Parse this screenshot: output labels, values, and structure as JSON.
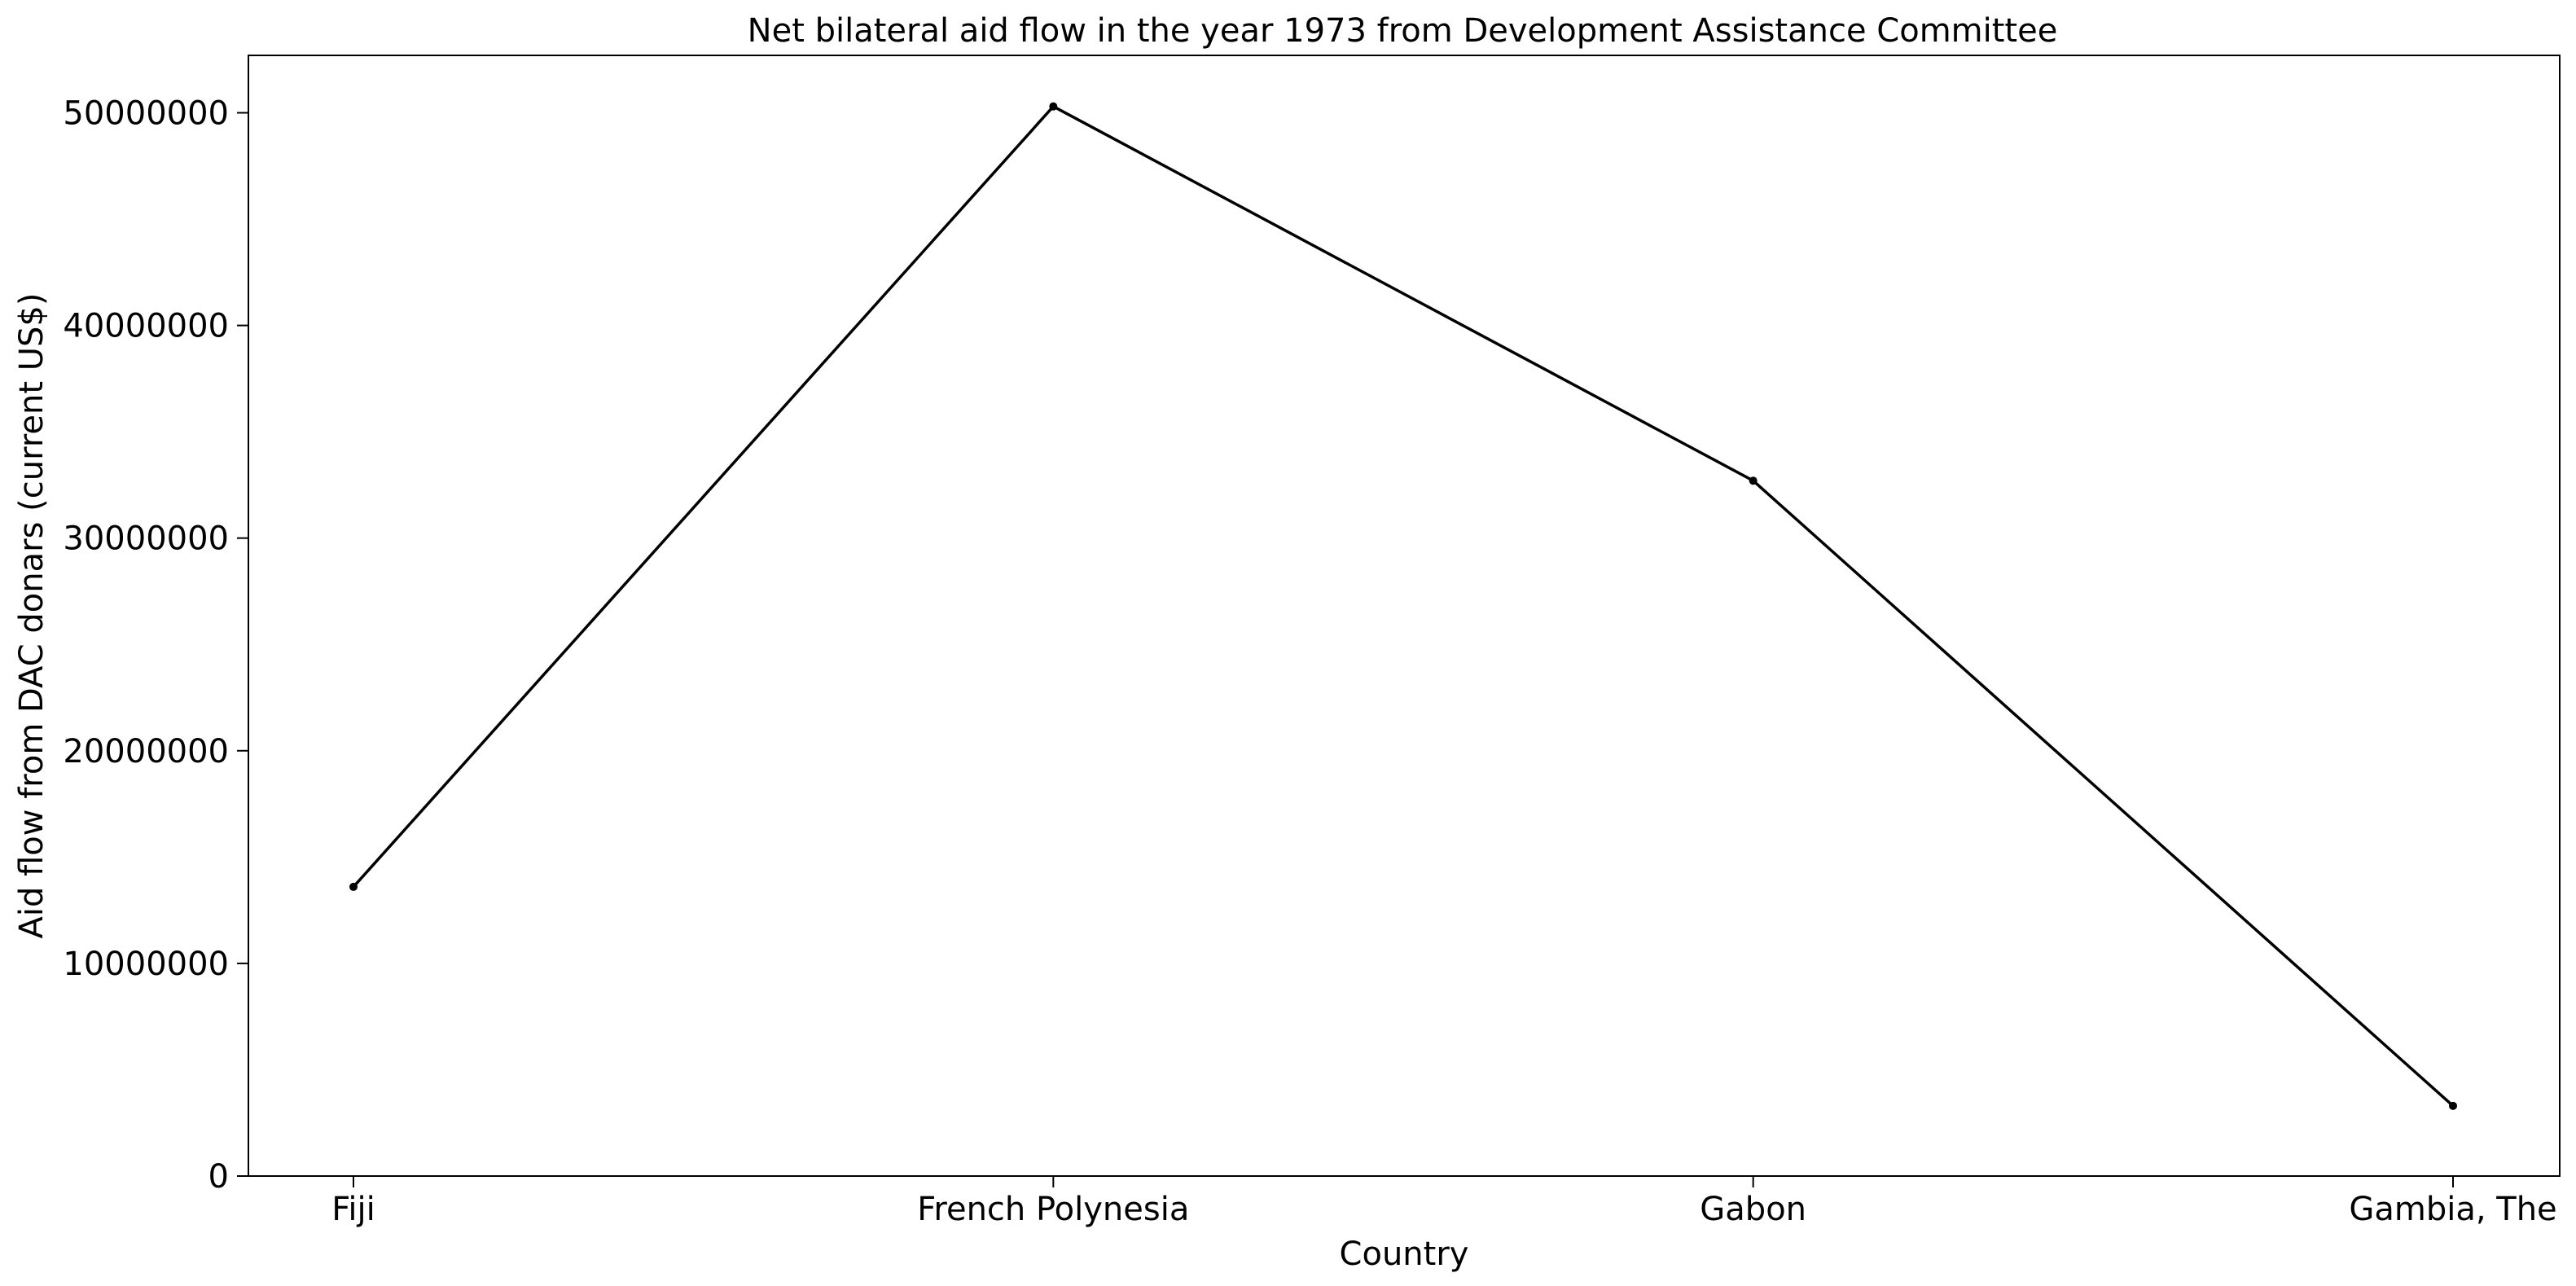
{
  "chart_data": {
    "type": "line",
    "title": "Net bilateral aid flow in the year 1973 from Development Assistance Committee",
    "xlabel": "Country",
    "ylabel": "Aid flow from DAC donars (current US$)",
    "categories": [
      "Fiji",
      "French Polynesia",
      "Gabon",
      "Gambia, The"
    ],
    "series": [
      {
        "values": [
          13600000,
          50300000,
          32700000,
          3300000
        ]
      }
    ],
    "ylim": [
      0,
      52700000
    ],
    "yticks": [
      0,
      10000000,
      20000000,
      30000000,
      40000000,
      50000000
    ],
    "ytick_labels": [
      "0",
      "10000000",
      "20000000",
      "30000000",
      "40000000",
      "50000000"
    ],
    "grid": false,
    "legend": "none",
    "line_color": "#000000",
    "marker": "circle"
  }
}
